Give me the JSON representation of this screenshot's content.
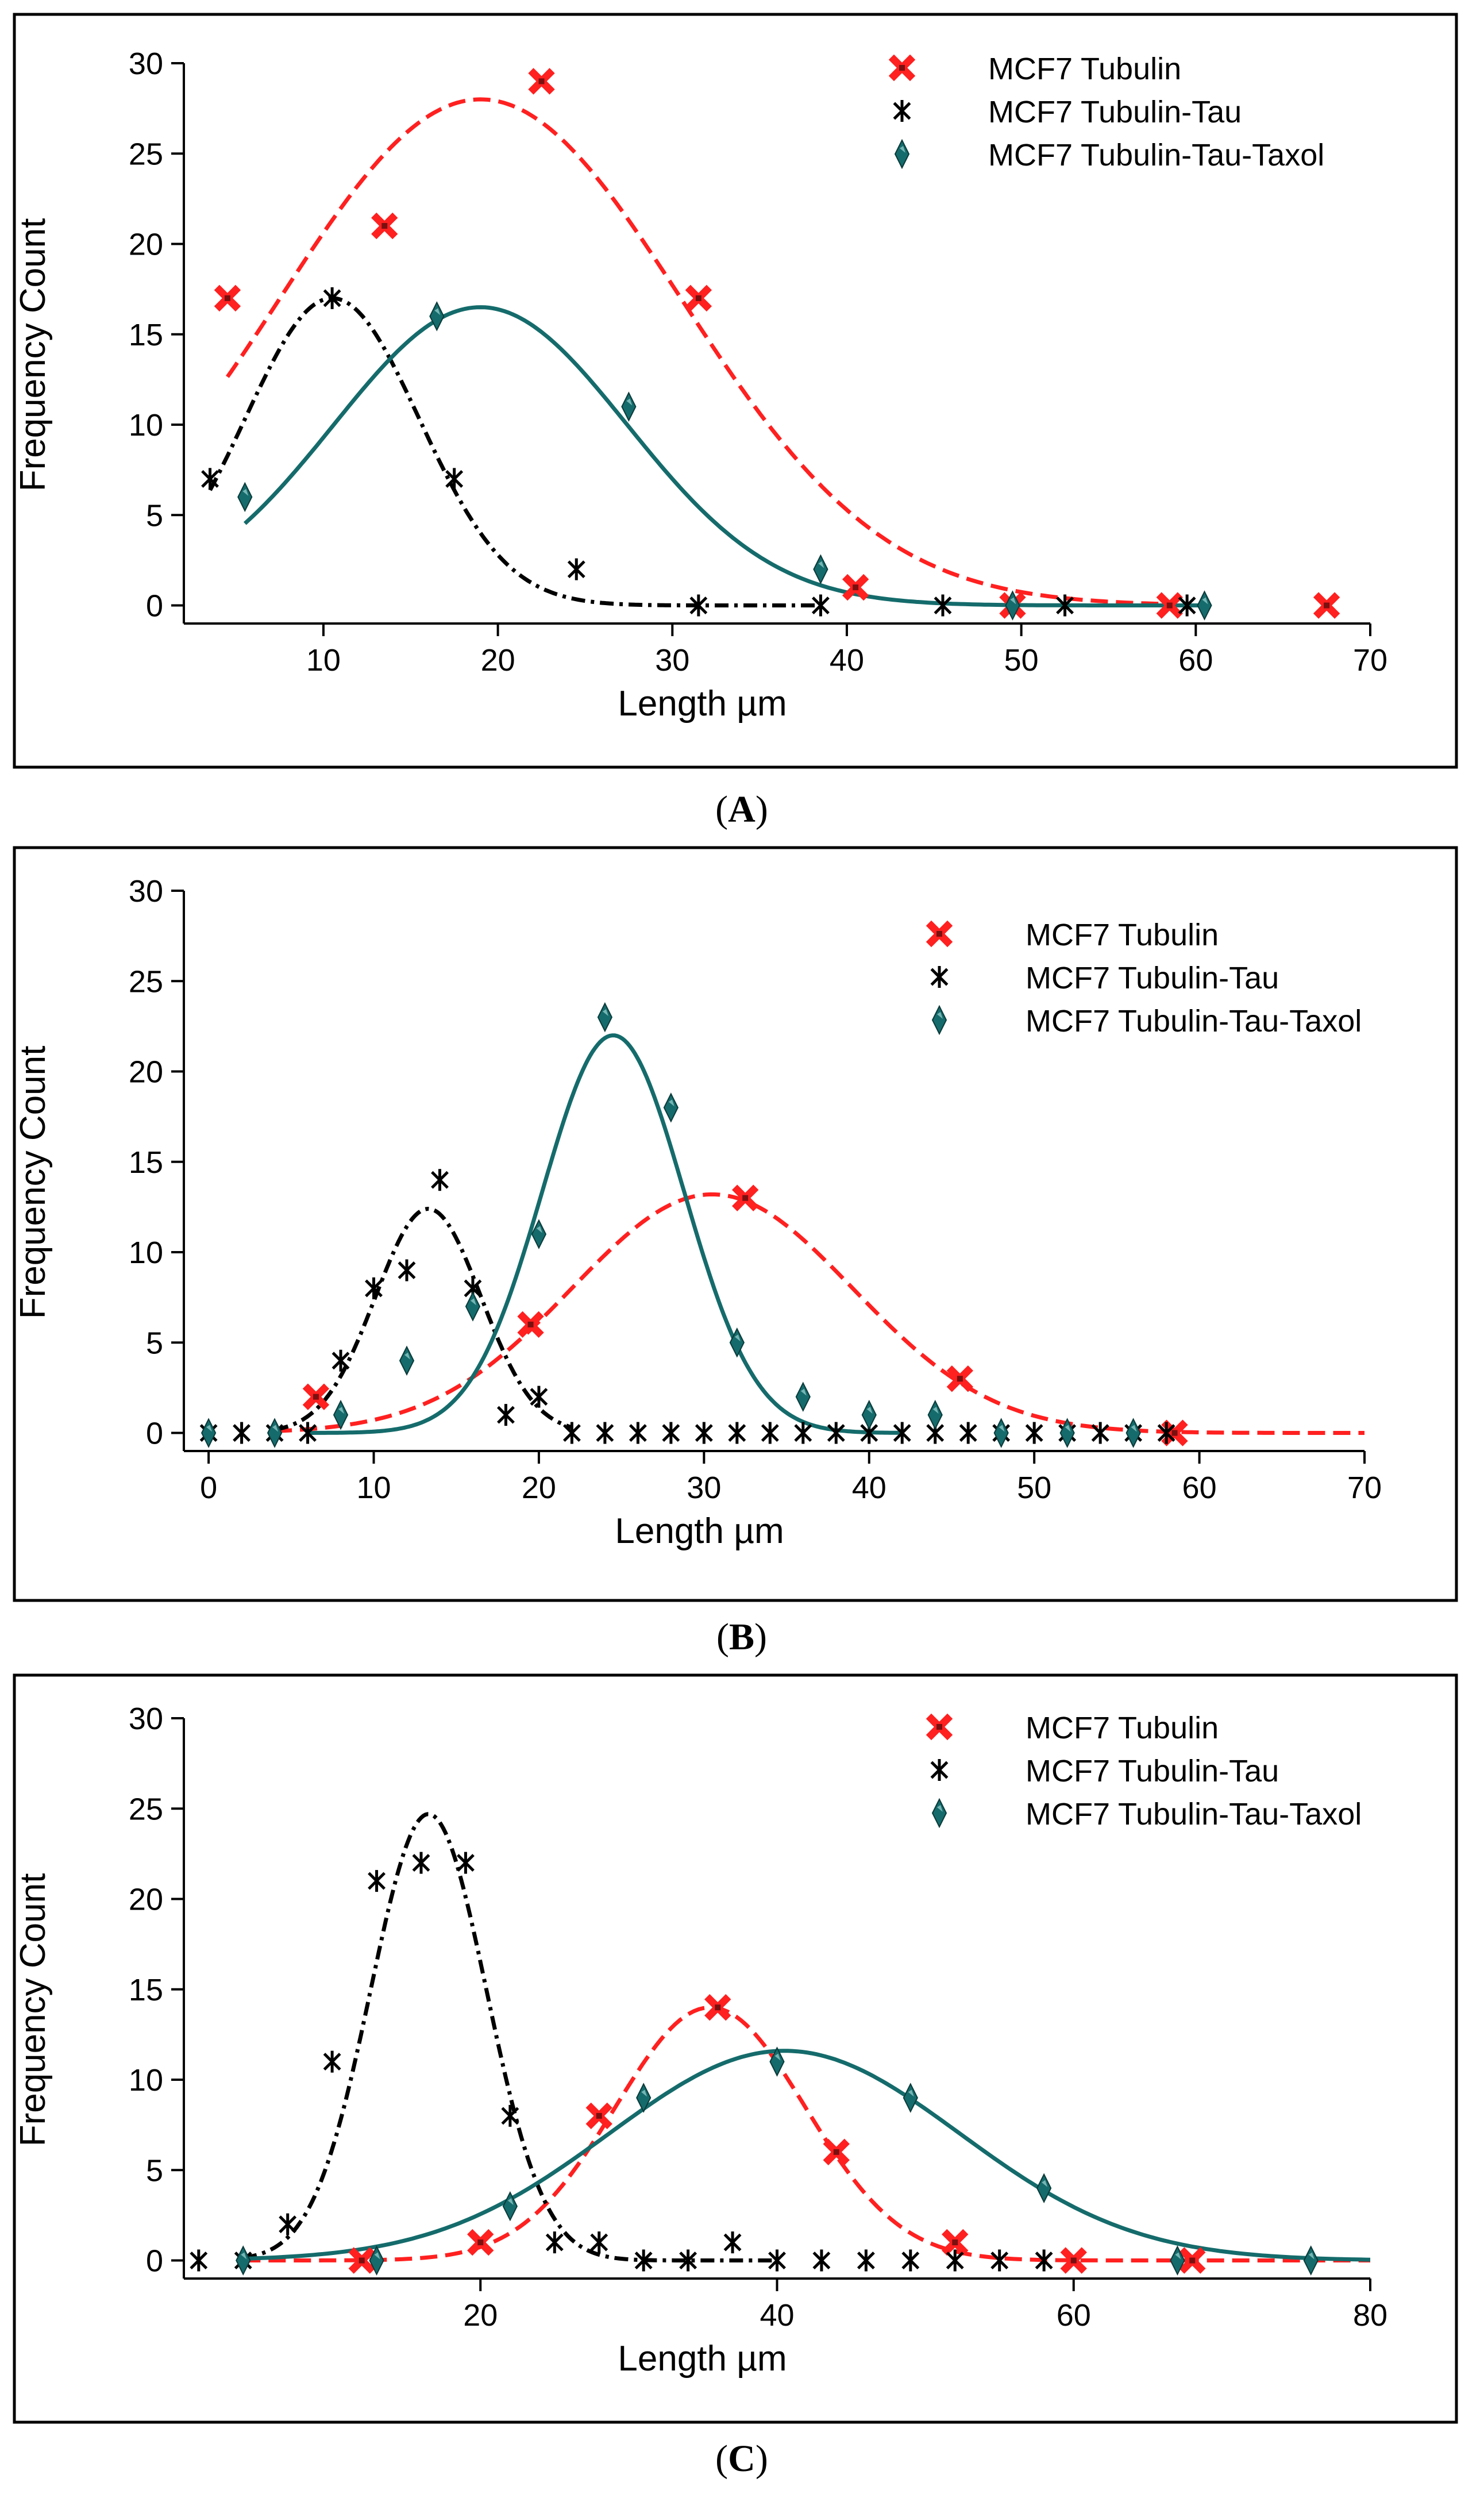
{
  "colors": {
    "tubulin": "#ff2020",
    "tau": "#000000",
    "taxol": "#156b6b",
    "frame": "#000000"
  },
  "marker_icons": {
    "tubulin": "red-x-square-marker-icon",
    "tau": "asterisk-marker-icon",
    "taxol": "teal-diamond-marker-icon"
  },
  "chart_data": [
    {
      "id": "A",
      "type": "scatter",
      "caption": "(A)",
      "xlabel": "Length µm",
      "ylabel": "Frequency Count",
      "xlim": [
        2,
        70
      ],
      "ylim": [
        -1,
        30
      ],
      "xticks": [
        10,
        20,
        30,
        40,
        50,
        60,
        70
      ],
      "yticks": [
        0,
        5,
        10,
        15,
        20,
        25,
        30
      ],
      "legend_position": "top-right",
      "grid": false,
      "series": [
        {
          "key": "tubulin",
          "name": "MCF7 Tubulin",
          "points": [
            [
              4.5,
              17
            ],
            [
              13.5,
              21
            ],
            [
              22.5,
              29
            ],
            [
              31.5,
              17
            ],
            [
              40.5,
              1
            ],
            [
              49.5,
              0
            ],
            [
              58.5,
              0
            ],
            [
              67.5,
              0
            ]
          ],
          "fit": {
            "amp": 28.0,
            "mu": 19.0,
            "sigma": 11.5,
            "xmin": 4.5,
            "xmax": 58
          },
          "fit_style": "dashed"
        },
        {
          "key": "tau",
          "name": "MCF7 Tubulin-Tau",
          "points": [
            [
              3.5,
              7
            ],
            [
              10.5,
              17
            ],
            [
              17.5,
              7
            ],
            [
              24.5,
              2
            ],
            [
              31.5,
              0
            ],
            [
              38.5,
              0
            ],
            [
              45.5,
              0
            ],
            [
              52.5,
              0
            ],
            [
              59.5,
              0
            ]
          ],
          "fit": {
            "amp": 17.0,
            "mu": 10.5,
            "sigma": 5.0,
            "xmin": 3.5,
            "xmax": 38.5
          },
          "fit_style": "dashdot"
        },
        {
          "key": "taxol",
          "name": "MCF7 Tubulin-Tau-Taxol",
          "points": [
            [
              5.5,
              6
            ],
            [
              16.5,
              16
            ],
            [
              27.5,
              11
            ],
            [
              38.5,
              2
            ],
            [
              49.5,
              0
            ],
            [
              60.5,
              0
            ]
          ],
          "fit": {
            "amp": 16.5,
            "mu": 19.0,
            "sigma": 8.4,
            "xmin": 5.5,
            "xmax": 60.5
          },
          "fit_style": "solid"
        }
      ]
    },
    {
      "id": "B",
      "type": "scatter",
      "caption": "(B)",
      "xlabel": "Length µm",
      "ylabel": "Frequency Count",
      "xlim": [
        -1.5,
        70
      ],
      "ylim": [
        -1,
        30
      ],
      "xticks": [
        0,
        10,
        20,
        30,
        40,
        50,
        60,
        70
      ],
      "yticks": [
        0,
        5,
        10,
        15,
        20,
        25,
        30
      ],
      "legend_position": "top-right",
      "grid": false,
      "series": [
        {
          "key": "tubulin",
          "name": "MCF7 Tubulin",
          "points": [
            [
              6.5,
              2
            ],
            [
              19.5,
              6
            ],
            [
              32.5,
              13
            ],
            [
              45.5,
              3
            ],
            [
              58.5,
              0
            ]
          ],
          "fit": {
            "amp": 13.2,
            "mu": 30.5,
            "sigma": 8.5,
            "xmin": 4,
            "xmax": 70
          },
          "fit_style": "dashed"
        },
        {
          "key": "tau",
          "name": "MCF7 Tubulin-Tau",
          "points": [
            [
              0,
              0
            ],
            [
              2,
              0
            ],
            [
              4,
              0
            ],
            [
              6,
              0
            ],
            [
              8,
              4
            ],
            [
              10,
              8
            ],
            [
              12,
              9
            ],
            [
              14,
              14
            ],
            [
              16,
              8
            ],
            [
              18,
              1
            ],
            [
              20,
              2
            ],
            [
              22,
              0
            ],
            [
              24,
              0
            ],
            [
              26,
              0
            ],
            [
              28,
              0
            ],
            [
              30,
              0
            ],
            [
              32,
              0
            ],
            [
              34,
              0
            ],
            [
              36,
              0
            ],
            [
              38,
              0
            ],
            [
              40,
              0
            ],
            [
              42,
              0
            ],
            [
              44,
              0
            ],
            [
              46,
              0
            ],
            [
              48,
              0
            ],
            [
              50,
              0
            ],
            [
              52,
              0
            ],
            [
              54,
              0
            ],
            [
              56,
              0
            ],
            [
              58,
              0
            ]
          ],
          "fit": {
            "amp": 12.4,
            "mu": 13.3,
            "sigma": 3.2,
            "xmin": 4,
            "xmax": 22
          },
          "fit_style": "dashdot"
        },
        {
          "key": "taxol",
          "name": "MCF7 Tubulin-Tau-Taxol",
          "points": [
            [
              0,
              0
            ],
            [
              4,
              0
            ],
            [
              8,
              1
            ],
            [
              12,
              4
            ],
            [
              16,
              7
            ],
            [
              20,
              11
            ],
            [
              24,
              23
            ],
            [
              28,
              18
            ],
            [
              32,
              5
            ],
            [
              36,
              2
            ],
            [
              40,
              1
            ],
            [
              44,
              1
            ],
            [
              48,
              0
            ],
            [
              52,
              0
            ],
            [
              56,
              0
            ]
          ],
          "fit": {
            "amp": 22.0,
            "mu": 24.5,
            "sigma": 4.3,
            "xmin": 6,
            "xmax": 42
          },
          "fit_style": "solid"
        }
      ]
    },
    {
      "id": "C",
      "type": "scatter",
      "caption": "(C)",
      "xlabel": "Length µm",
      "ylabel": "Frequency Count",
      "xlim": [
        0,
        80
      ],
      "ylim": [
        -1,
        30
      ],
      "xticks": [
        20,
        40,
        60,
        80
      ],
      "yticks": [
        0,
        5,
        10,
        15,
        20,
        25,
        30
      ],
      "legend_position": "top-right",
      "grid": false,
      "series": [
        {
          "key": "tubulin",
          "name": "MCF7 Tubulin",
          "points": [
            [
              12,
              0
            ],
            [
              20,
              1
            ],
            [
              28,
              8
            ],
            [
              36,
              14
            ],
            [
              44,
              6
            ],
            [
              52,
              1
            ],
            [
              60,
              0
            ],
            [
              68,
              0
            ]
          ],
          "fit": {
            "amp": 14.0,
            "mu": 35.5,
            "sigma": 6.4,
            "xmin": 4,
            "xmax": 80
          },
          "fit_style": "dashed"
        },
        {
          "key": "tau",
          "name": "MCF7 Tubulin-Tau",
          "points": [
            [
              1,
              0
            ],
            [
              4,
              0
            ],
            [
              7,
              2
            ],
            [
              10,
              11
            ],
            [
              13,
              21
            ],
            [
              16,
              22
            ],
            [
              19,
              22
            ],
            [
              22,
              8
            ],
            [
              25,
              1
            ],
            [
              28,
              1
            ],
            [
              31,
              0
            ],
            [
              34,
              0
            ],
            [
              37,
              1
            ],
            [
              40,
              0
            ],
            [
              43,
              0
            ],
            [
              46,
              0
            ],
            [
              49,
              0
            ],
            [
              52,
              0
            ],
            [
              55,
              0
            ],
            [
              58,
              0
            ]
          ],
          "fit": {
            "amp": 24.7,
            "mu": 16.5,
            "sigma": 3.9,
            "xmin": 4,
            "xmax": 40
          },
          "fit_style": "dashdot"
        },
        {
          "key": "taxol",
          "name": "MCF7 Tubulin-Tau-Taxol",
          "points": [
            [
              4,
              0
            ],
            [
              13,
              0
            ],
            [
              22,
              3
            ],
            [
              31,
              9
            ],
            [
              40,
              11
            ],
            [
              49,
              9
            ],
            [
              58,
              4
            ],
            [
              67,
              0
            ],
            [
              76,
              0
            ]
          ],
          "fit": {
            "amp": 11.6,
            "mu": 40.5,
            "sigma": 11.8,
            "xmin": 4,
            "xmax": 80
          },
          "fit_style": "solid"
        }
      ]
    }
  ]
}
